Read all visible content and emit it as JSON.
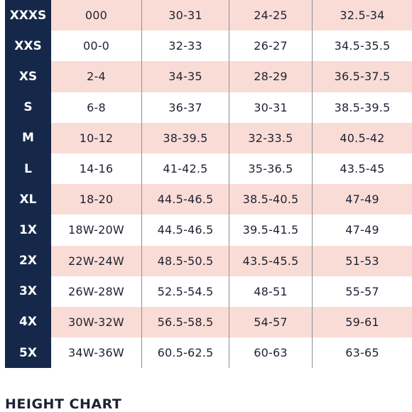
{
  "rows": [
    {
      "size": "XXXS",
      "c1": "000",
      "c2": "30-31",
      "c3": "24-25",
      "c4": "32.5-34",
      "shaded": true
    },
    {
      "size": "XXS",
      "c1": "00-0",
      "c2": "32-33",
      "c3": "26-27",
      "c4": "34.5-35.5",
      "shaded": false
    },
    {
      "size": "XS",
      "c1": "2-4",
      "c2": "34-35",
      "c3": "28-29",
      "c4": "36.5-37.5",
      "shaded": true
    },
    {
      "size": "S",
      "c1": "6-8",
      "c2": "36-37",
      "c3": "30-31",
      "c4": "38.5-39.5",
      "shaded": false
    },
    {
      "size": "M",
      "c1": "10-12",
      "c2": "38-39.5",
      "c3": "32-33.5",
      "c4": "40.5-42",
      "shaded": true
    },
    {
      "size": "L",
      "c1": "14-16",
      "c2": "41-42.5",
      "c3": "35-36.5",
      "c4": "43.5-45",
      "shaded": false
    },
    {
      "size": "XL",
      "c1": "18-20",
      "c2": "44.5-46.5",
      "c3": "38.5-40.5",
      "c4": "47-49",
      "shaded": true
    },
    {
      "size": "1X",
      "c1": "18W-20W",
      "c2": "44.5-46.5",
      "c3": "39.5-41.5",
      "c4": "47-49",
      "shaded": false
    },
    {
      "size": "2X",
      "c1": "22W-24W",
      "c2": "48.5-50.5",
      "c3": "43.5-45.5",
      "c4": "51-53",
      "shaded": true
    },
    {
      "size": "3X",
      "c1": "26W-28W",
      "c2": "52.5-54.5",
      "c3": "48-51",
      "c4": "55-57",
      "shaded": false
    },
    {
      "size": "4X",
      "c1": "30W-32W",
      "c2": "56.5-58.5",
      "c3": "54-57",
      "c4": "59-61",
      "shaded": true
    },
    {
      "size": "5X",
      "c1": "34W-36W",
      "c2": "60.5-62.5",
      "c3": "60-63",
      "c4": "63-65",
      "shaded": false
    }
  ],
  "height_chart_title": "HEIGHT CHART",
  "colors": {
    "navy": "#16284a",
    "blush": "#fadcd6"
  }
}
